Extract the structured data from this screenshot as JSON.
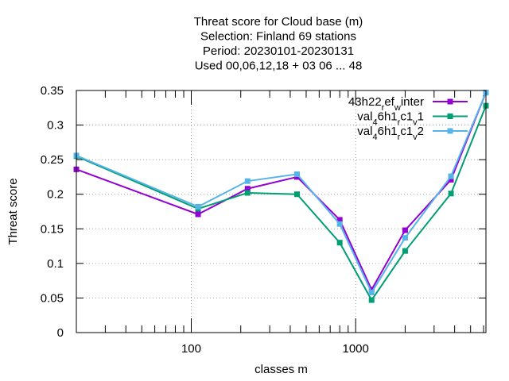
{
  "chart_data": {
    "type": "line",
    "title_lines": [
      "Threat score  for Cloud base (m)",
      "Selection: Finland     69 stations",
      "Period: 20230101-20230131",
      "Used  00,06,12,18  + 03 06 ... 48"
    ],
    "xlabel": "classes m",
    "ylabel": "Threat score",
    "x_scale": "log",
    "xlim": [
      20,
      6200
    ],
    "ylim": [
      0,
      0.35
    ],
    "x_ticks": [
      {
        "value": 100,
        "label": "100"
      },
      {
        "value": 1000,
        "label": "1000"
      }
    ],
    "y_ticks": [
      {
        "value": 0,
        "label": "0"
      },
      {
        "value": 0.05,
        "label": "0.05"
      },
      {
        "value": 0.1,
        "label": "0.1"
      },
      {
        "value": 0.15,
        "label": "0.15"
      },
      {
        "value": 0.2,
        "label": "0.2"
      },
      {
        "value": 0.25,
        "label": "0.25"
      },
      {
        "value": 0.3,
        "label": "0.3"
      },
      {
        "value": 0.35,
        "label": "0.35"
      }
    ],
    "grid": true,
    "legend_position": "top-right",
    "series": [
      {
        "name": "43h22_ref_winter",
        "legend_parts": [
          [
            "43h22",
            ""
          ],
          [
            "r",
            "sub"
          ],
          [
            "ef",
            ""
          ],
          [
            "w",
            "sub"
          ],
          [
            "inter",
            ""
          ]
        ],
        "color": "#9400d3",
        "x": [
          20,
          110,
          220,
          440,
          800,
          1250,
          2000,
          3800,
          6200
        ],
        "y": [
          0.236,
          0.171,
          0.208,
          0.225,
          0.163,
          0.062,
          0.148,
          0.221,
          0.347
        ]
      },
      {
        "name": "val_46h1_rc1_v1",
        "legend_parts": [
          [
            "val",
            ""
          ],
          [
            "4",
            "sub"
          ],
          [
            "6h1",
            ""
          ],
          [
            "r",
            "sub"
          ],
          [
            "c1",
            ""
          ],
          [
            "v",
            "sub"
          ],
          [
            "1",
            ""
          ]
        ],
        "color": "#009e73",
        "x": [
          20,
          110,
          220,
          440,
          800,
          1250,
          2000,
          3800,
          6200
        ],
        "y": [
          0.255,
          0.179,
          0.202,
          0.2,
          0.13,
          0.047,
          0.118,
          0.201,
          0.328
        ]
      },
      {
        "name": "val_46h1_rc1_v2",
        "legend_parts": [
          [
            "val",
            ""
          ],
          [
            "4",
            "sub"
          ],
          [
            "6h1",
            ""
          ],
          [
            "r",
            "sub"
          ],
          [
            "c1",
            ""
          ],
          [
            "v",
            "sub"
          ],
          [
            "2",
            ""
          ]
        ],
        "color": "#56b4e9",
        "x": [
          20,
          110,
          220,
          440,
          800,
          1250,
          2000,
          3800,
          6200
        ],
        "y": [
          0.256,
          0.182,
          0.219,
          0.229,
          0.157,
          0.058,
          0.137,
          0.226,
          0.347
        ]
      }
    ]
  }
}
